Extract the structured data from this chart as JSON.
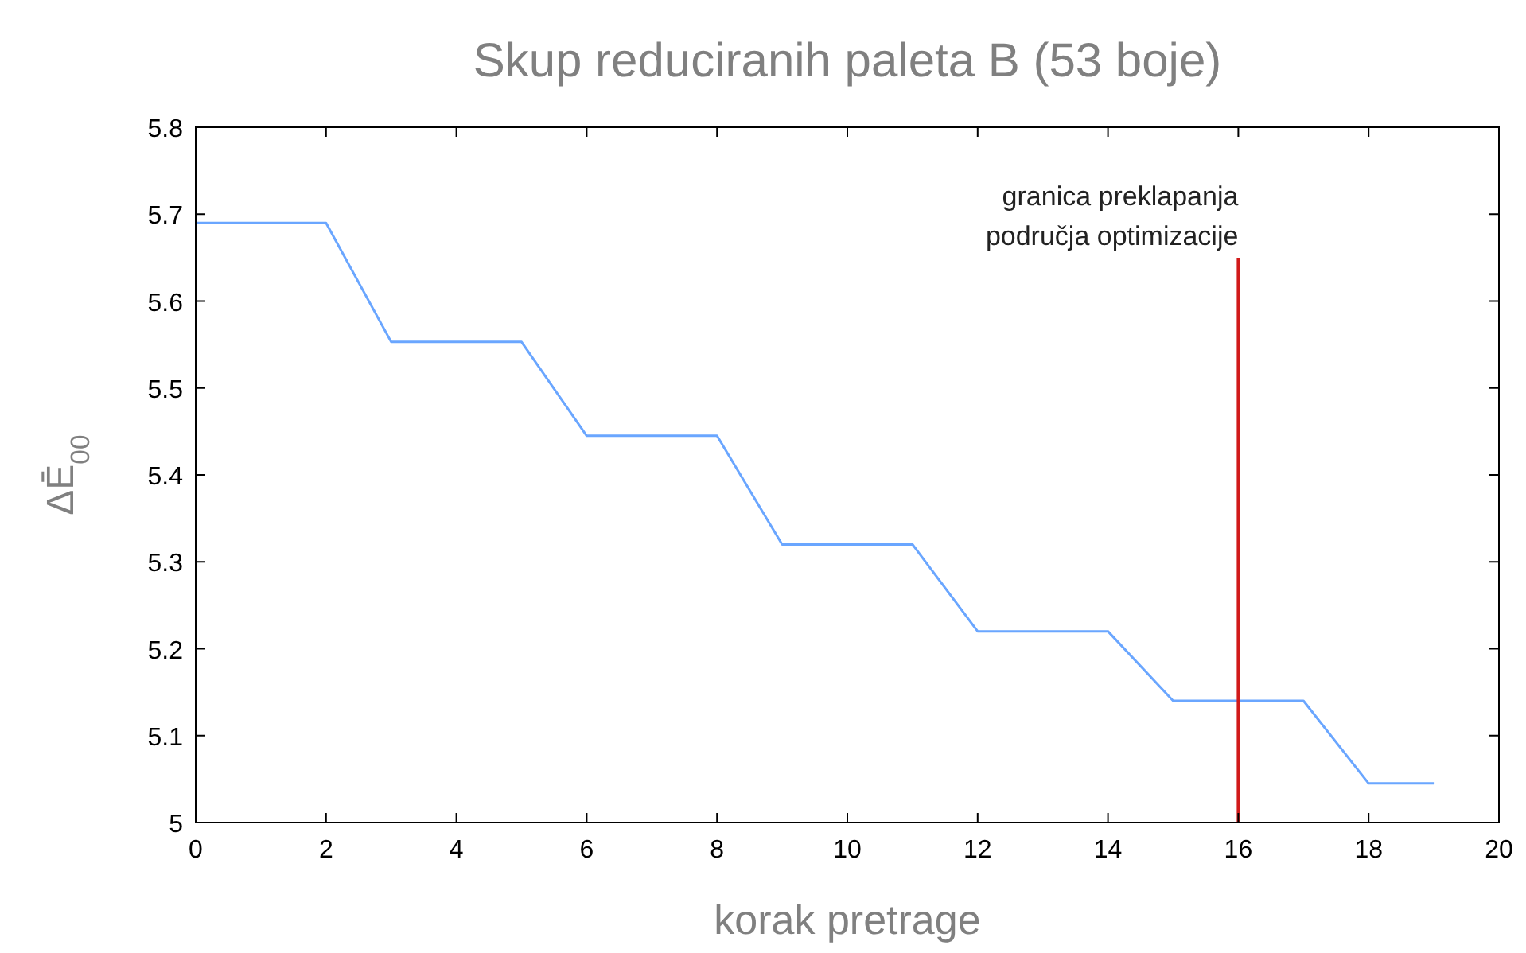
{
  "chart_data": {
    "type": "line",
    "title": "Skup reduciranih paleta B (53 boje)",
    "xlabel": "korak pretrage",
    "ylabel": "ΔĒ$_{00}$",
    "x": [
      0,
      2,
      3,
      5,
      6,
      8,
      9,
      11,
      12,
      14,
      15,
      17,
      18,
      19
    ],
    "values": [
      5.69,
      5.69,
      5.553,
      5.553,
      5.445,
      5.445,
      5.32,
      5.32,
      5.22,
      5.22,
      5.14,
      5.14,
      5.045,
      5.045
    ],
    "color": "#6aa6ff",
    "xlim": [
      0,
      20
    ],
    "xticks": [
      0,
      2,
      4,
      6,
      8,
      10,
      12,
      14,
      16,
      18,
      20
    ],
    "ylim": [
      5,
      5.8
    ],
    "yticks": [
      5,
      5.1,
      5.2,
      5.3,
      5.4,
      5.5,
      5.6,
      5.7,
      5.8
    ],
    "ref_lines": [
      {
        "axis": "x",
        "value": 16,
        "label": "granica preklapanja\npodručja optimizacije",
        "color": "#d11a1a"
      }
    ],
    "grid": false,
    "marker": "none",
    "line_style": "solid"
  }
}
